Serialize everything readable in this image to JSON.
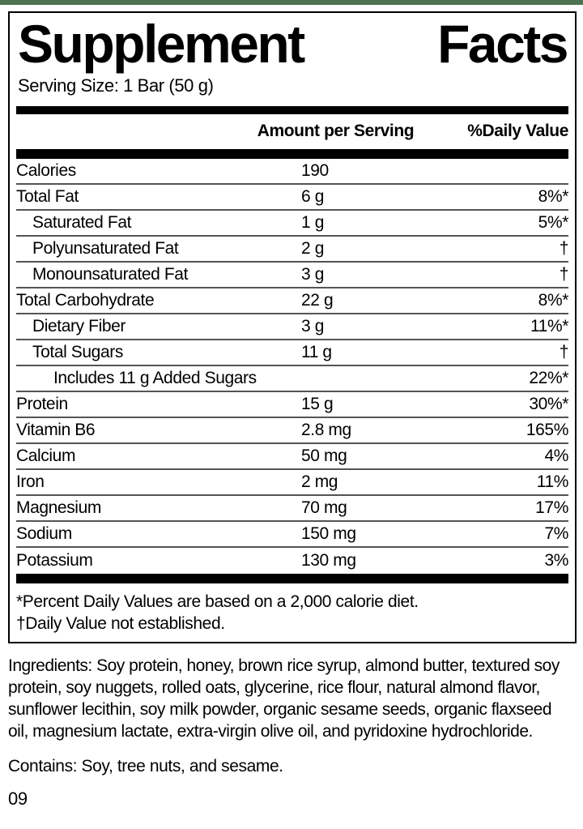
{
  "page": {
    "accent_color": "#4d7352"
  },
  "label": {
    "title_left": "Supplement",
    "title_right": "Facts",
    "serving_size": "Serving Size: 1 Bar (50 g)",
    "columns": {
      "amount": "Amount per Serving",
      "dv": "%Daily Value"
    },
    "rows": [
      {
        "name": "Calories",
        "amount": "190",
        "dv": "",
        "indent": 0
      },
      {
        "name": "Total Fat",
        "amount": "6 g",
        "dv": "8%*",
        "indent": 0
      },
      {
        "name": "Saturated Fat",
        "amount": "1 g",
        "dv": "5%*",
        "indent": 1
      },
      {
        "name": "Polyunsaturated Fat",
        "amount": "2 g",
        "dv": "†",
        "indent": 1
      },
      {
        "name": "Monounsaturated Fat",
        "amount": "3 g",
        "dv": "†",
        "indent": 1
      },
      {
        "name": "Total Carbohydrate",
        "amount": "22 g",
        "dv": "8%*",
        "indent": 0
      },
      {
        "name": "Dietary Fiber",
        "amount": "3 g",
        "dv": "11%*",
        "indent": 1
      },
      {
        "name": "Total Sugars",
        "amount": "11 g",
        "dv": "†",
        "indent": 1
      },
      {
        "name": "Includes 11 g Added Sugars",
        "amount": "",
        "dv": "22%*",
        "indent": 2
      },
      {
        "name": "Protein",
        "amount": "15 g",
        "dv": "30%*",
        "indent": 0
      },
      {
        "name": "Vitamin B6",
        "amount": "2.8 mg",
        "dv": "165%",
        "indent": 0
      },
      {
        "name": "Calcium",
        "amount": "50 mg",
        "dv": "4%",
        "indent": 0
      },
      {
        "name": "Iron",
        "amount": "2 mg",
        "dv": "11%",
        "indent": 0
      },
      {
        "name": "Magnesium",
        "amount": "70 mg",
        "dv": "17%",
        "indent": 0
      },
      {
        "name": "Sodium",
        "amount": "150 mg",
        "dv": "7%",
        "indent": 0
      },
      {
        "name": "Potassium",
        "amount": "130 mg",
        "dv": "3%",
        "indent": 0
      }
    ],
    "footnotes": [
      "*Percent Daily Values are based on a 2,000 calorie diet.",
      "†Daily Value not established."
    ]
  },
  "ingredients": "Ingredients: Soy protein, honey, brown rice syrup, almond butter, textured soy protein, soy nuggets, rolled oats, glycerine, rice flour, natural almond flavor, sunflower lecithin, soy milk powder, organic sesame seeds, organic flaxseed oil, magnesium lactate, extra-virgin olive oil, and pyridoxine hydrochloride.",
  "contains": "Contains: Soy, tree nuts, and sesame.",
  "footer_code": "09"
}
